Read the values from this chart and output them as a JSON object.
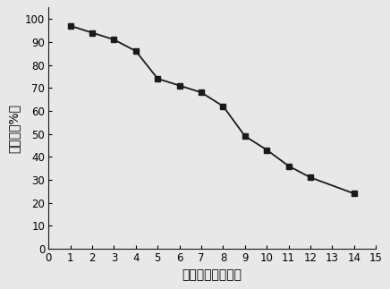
{
  "x": [
    1,
    2,
    3,
    4,
    5,
    6,
    7,
    8,
    9,
    10,
    11,
    12,
    14
  ],
  "y": [
    97,
    94,
    91,
    86,
    74,
    71,
    68,
    62,
    49,
    43,
    36,
    31,
    24
  ],
  "xlabel": "降解时间（分钟）",
  "ylabel": "降解率（%）",
  "xlim": [
    0,
    15
  ],
  "ylim": [
    0,
    105
  ],
  "xticks": [
    0,
    1,
    2,
    3,
    4,
    5,
    6,
    7,
    8,
    9,
    10,
    11,
    12,
    13,
    14,
    15
  ],
  "yticks": [
    0,
    10,
    20,
    30,
    40,
    50,
    60,
    70,
    80,
    90,
    100
  ],
  "line_color": "#1a1a1a",
  "marker": "s",
  "marker_size": 5,
  "line_width": 1.3,
  "background_color": "#e8e8e8",
  "plot_bg_color": "#e8e8e8",
  "xlabel_fontsize": 10,
  "ylabel_fontsize": 10,
  "tick_fontsize": 8.5
}
